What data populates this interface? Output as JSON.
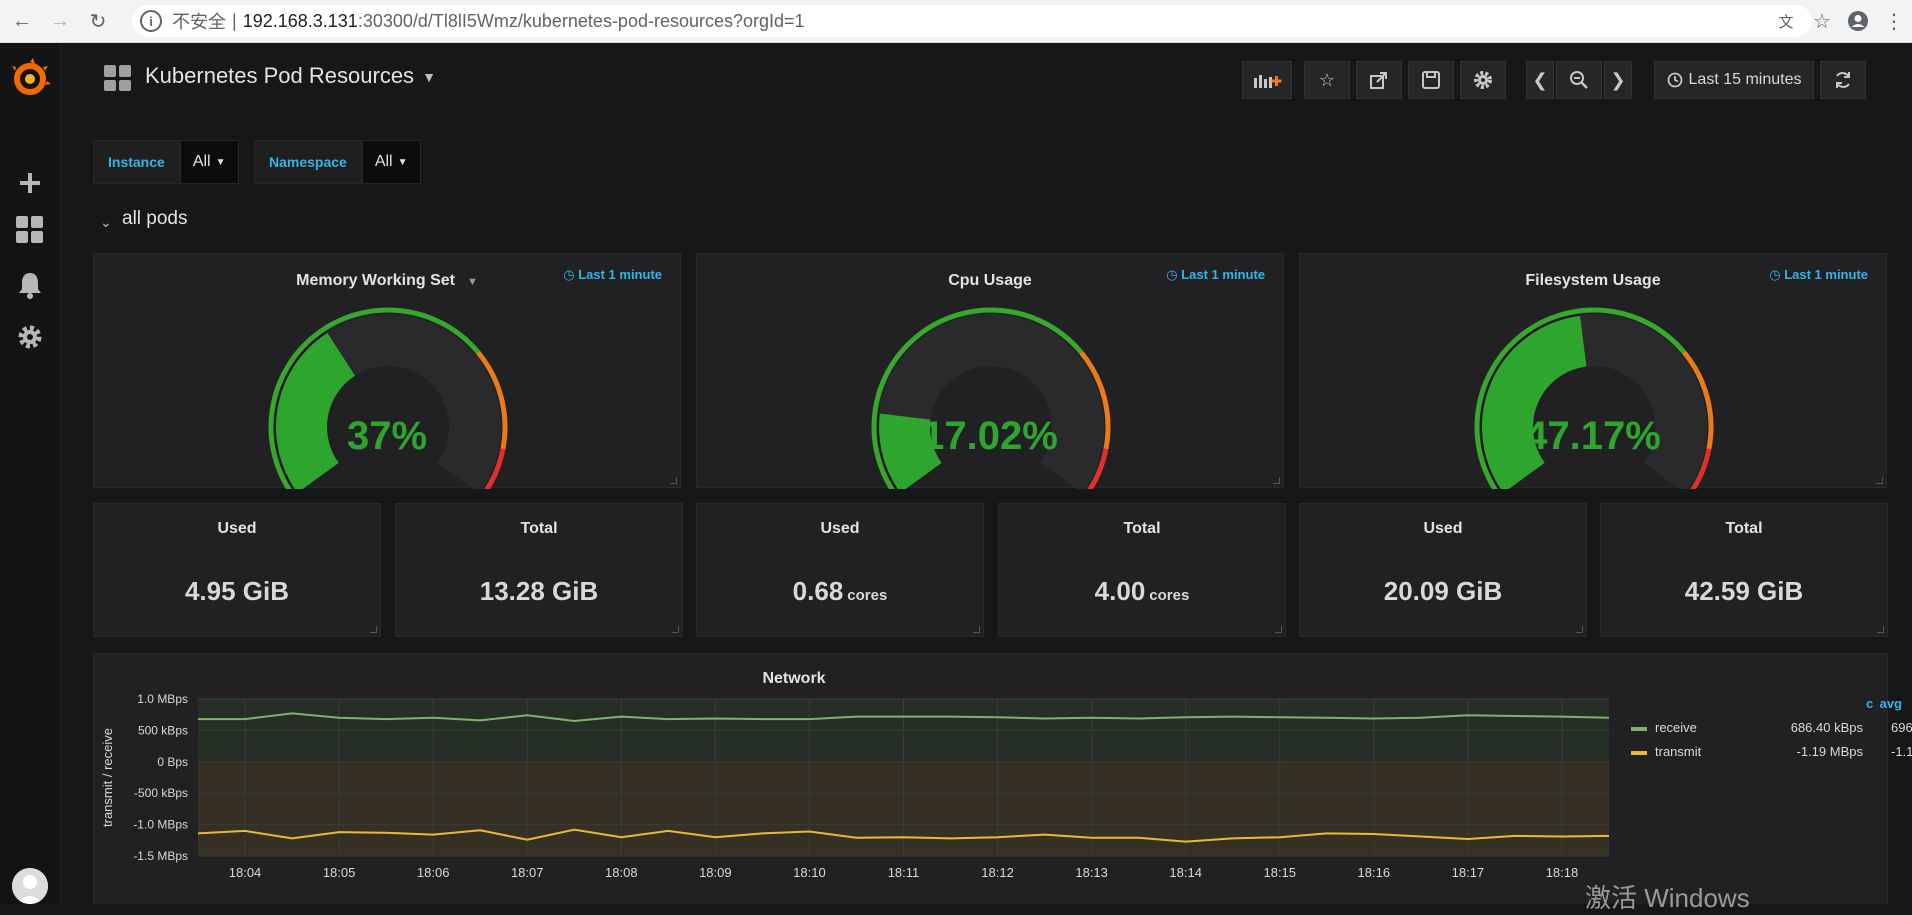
{
  "browser": {
    "insecure_label": "不安全",
    "separator": "|",
    "url_host": "192.168.3.131",
    "url_path": ":30300/d/Tl8lI5Wmz/kubernetes-pod-resources?orgId=1"
  },
  "dashboard": {
    "title": "Kubernetes Pod Resources",
    "time_range": "Last 15 minutes"
  },
  "variables": [
    {
      "label": "Instance",
      "value": "All"
    },
    {
      "label": "Namespace",
      "value": "All"
    }
  ],
  "row": {
    "title": "all pods"
  },
  "gauges": [
    {
      "title": "Memory Working Set",
      "time": "Last 1 minute",
      "value": "37%",
      "fraction": 0.37
    },
    {
      "title": "Cpu Usage",
      "time": "Last 1 minute",
      "value": "17.02%",
      "fraction": 0.1702
    },
    {
      "title": "Filesystem Usage",
      "time": "Last 1 minute",
      "value": "47.17%",
      "fraction": 0.4717
    }
  ],
  "stats": [
    {
      "title": "Used",
      "value": "4.95 GiB",
      "unit": ""
    },
    {
      "title": "Total",
      "value": "13.28 GiB",
      "unit": ""
    },
    {
      "title": "Used",
      "value": "0.68",
      "unit": "cores"
    },
    {
      "title": "Total",
      "value": "4.00",
      "unit": "cores"
    },
    {
      "title": "Used",
      "value": "20.09 GiB",
      "unit": ""
    },
    {
      "title": "Total",
      "value": "42.59 GiB",
      "unit": ""
    }
  ],
  "network": {
    "title": "Network",
    "legend_headers": {
      "avg": "avg",
      "current": "c"
    },
    "legend": [
      {
        "name": "receive",
        "avg": "686.40 kBps",
        "current": "696.",
        "color": "#7eb26d"
      },
      {
        "name": "transmit",
        "avg": "-1.19 MBps",
        "current": "-1.1",
        "color": "#eab839"
      }
    ]
  },
  "chart_data": {
    "type": "line",
    "title": "Network",
    "ylabel": "transmit / receive",
    "ylim": [
      -1.5,
      1.0
    ],
    "y_unit_label": "MBps",
    "yticks": [
      "1.0 MBps",
      "500 kBps",
      "0 Bps",
      "-500 kBps",
      "-1.0 MBps",
      "-1.5 MBps"
    ],
    "yticks_values": [
      1.0,
      0.5,
      0.0,
      -0.5,
      -1.0,
      -1.5
    ],
    "xticks": [
      "18:04",
      "18:05",
      "18:06",
      "18:07",
      "18:08",
      "18:09",
      "18:10",
      "18:11",
      "18:12",
      "18:13",
      "18:14",
      "18:15",
      "18:16",
      "18:17",
      "18:18"
    ],
    "xrange": [
      "18:03:30",
      "18:18:30"
    ],
    "series": [
      {
        "name": "receive",
        "color": "#7eb26d",
        "x": [
          "18:03:30",
          "18:04:00",
          "18:04:30",
          "18:05:00",
          "18:05:30",
          "18:06:00",
          "18:06:30",
          "18:07:00",
          "18:07:30",
          "18:08:00",
          "18:08:30",
          "18:09:00",
          "18:09:30",
          "18:10:00",
          "18:10:30",
          "18:11:00",
          "18:11:30",
          "18:12:00",
          "18:12:30",
          "18:13:00",
          "18:13:30",
          "18:14:00",
          "18:14:30",
          "18:15:00",
          "18:15:30",
          "18:16:00",
          "18:16:30",
          "18:17:00",
          "18:17:30",
          "18:18:00",
          "18:18:30"
        ],
        "values": [
          0.68,
          0.68,
          0.77,
          0.7,
          0.68,
          0.7,
          0.66,
          0.74,
          0.65,
          0.72,
          0.68,
          0.69,
          0.68,
          0.68,
          0.72,
          0.72,
          0.72,
          0.71,
          0.69,
          0.7,
          0.69,
          0.71,
          0.72,
          0.71,
          0.7,
          0.69,
          0.7,
          0.74,
          0.73,
          0.72,
          0.7
        ]
      },
      {
        "name": "transmit",
        "color": "#eab839",
        "x": [
          "18:03:30",
          "18:04:00",
          "18:04:30",
          "18:05:00",
          "18:05:30",
          "18:06:00",
          "18:06:30",
          "18:07:00",
          "18:07:30",
          "18:08:00",
          "18:08:30",
          "18:09:00",
          "18:09:30",
          "18:10:00",
          "18:10:30",
          "18:11:00",
          "18:11:30",
          "18:12:00",
          "18:12:30",
          "18:13:00",
          "18:13:30",
          "18:14:00",
          "18:14:30",
          "18:15:00",
          "18:15:30",
          "18:16:00",
          "18:16:30",
          "18:17:00",
          "18:17:30",
          "18:18:00",
          "18:18:30"
        ],
        "values": [
          -1.14,
          -1.1,
          -1.22,
          -1.12,
          -1.13,
          -1.16,
          -1.09,
          -1.24,
          -1.08,
          -1.2,
          -1.1,
          -1.2,
          -1.14,
          -1.11,
          -1.21,
          -1.2,
          -1.22,
          -1.2,
          -1.16,
          -1.21,
          -1.21,
          -1.27,
          -1.22,
          -1.2,
          -1.14,
          -1.15,
          -1.19,
          -1.23,
          -1.18,
          -1.19,
          -1.18
        ]
      }
    ]
  },
  "watermark": "激活 Windows"
}
